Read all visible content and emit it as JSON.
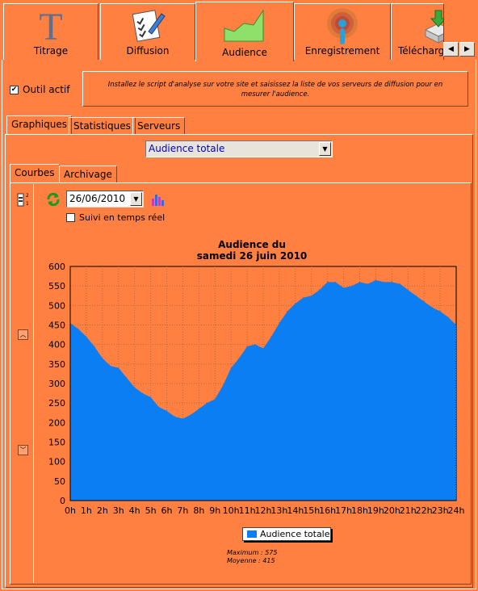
{
  "top_tabs": [
    {
      "label": "Titrage",
      "icon": "title-t-icon"
    },
    {
      "label": "Diffusion",
      "icon": "checklist-icon"
    },
    {
      "label": "Audience",
      "icon": "audience-chart-icon",
      "active": true
    },
    {
      "label": "Enregistrement",
      "icon": "broadcast-antenna-icon"
    },
    {
      "label": "Téléchargement",
      "icon": "download-drive-icon"
    }
  ],
  "tool": {
    "label": "Outil actif",
    "checked": true
  },
  "info_text": "Installez le script d'analyse sur votre site et saisissez la liste de vos serveurs de diffusion pour en mesurer l'audience.",
  "sub_tabs": [
    "Graphiques",
    "Statistiques",
    "Serveurs"
  ],
  "select_value": "Audience totale",
  "view_tabs": [
    "Courbes",
    "Archivage"
  ],
  "date_value": "26/06/2010",
  "realtime_label": "Suivi en temps réel",
  "stats": {
    "maximum": "Maximum : 575",
    "moyenne": "Moyenne : 415"
  },
  "colors": {
    "background": "#ff8040",
    "series": "#0a7ef2",
    "grid": "#b06a3a"
  },
  "chart_data": {
    "type": "area",
    "title": "Audience du",
    "subtitle": "samedi 26 juin 2010",
    "xlabel": "",
    "ylabel": "",
    "ylim": [
      0,
      600
    ],
    "yticks": [
      "0",
      "50",
      "100",
      "150",
      "200",
      "250",
      "300",
      "350",
      "400",
      "450",
      "500",
      "550",
      "600"
    ],
    "xticks": [
      "0h",
      "1h",
      "2h",
      "3h",
      "4h",
      "5h",
      "6h",
      "7h",
      "8h",
      "9h",
      "10h",
      "11h",
      "12h",
      "13h",
      "14h",
      "15h",
      "16h",
      "17h",
      "18h",
      "19h",
      "20h",
      "21h",
      "22h",
      "23h",
      "24h"
    ],
    "grid": true,
    "legend_position": "bottom",
    "series": [
      {
        "name": "Audience totale",
        "x": [
          0,
          0.5,
          1,
          1.5,
          2,
          2.5,
          3,
          3.5,
          4,
          4.5,
          5,
          5.5,
          6,
          6.5,
          7,
          7.5,
          8,
          8.5,
          9,
          9.5,
          10,
          10.5,
          11,
          11.5,
          12,
          12.5,
          13,
          13.5,
          14,
          14.5,
          15,
          15.5,
          16,
          16.5,
          17,
          17.5,
          18,
          18.5,
          19,
          19.5,
          20,
          20.5,
          21,
          21.5,
          22,
          22.5,
          23,
          23.5,
          24
        ],
        "values": [
          455,
          440,
          420,
          395,
          365,
          345,
          340,
          315,
          290,
          275,
          265,
          240,
          230,
          215,
          210,
          220,
          235,
          250,
          260,
          295,
          340,
          365,
          395,
          400,
          390,
          420,
          455,
          485,
          505,
          520,
          525,
          540,
          560,
          560,
          545,
          550,
          560,
          555,
          565,
          560,
          560,
          555,
          540,
          525,
          510,
          495,
          485,
          470,
          450
        ]
      }
    ]
  }
}
